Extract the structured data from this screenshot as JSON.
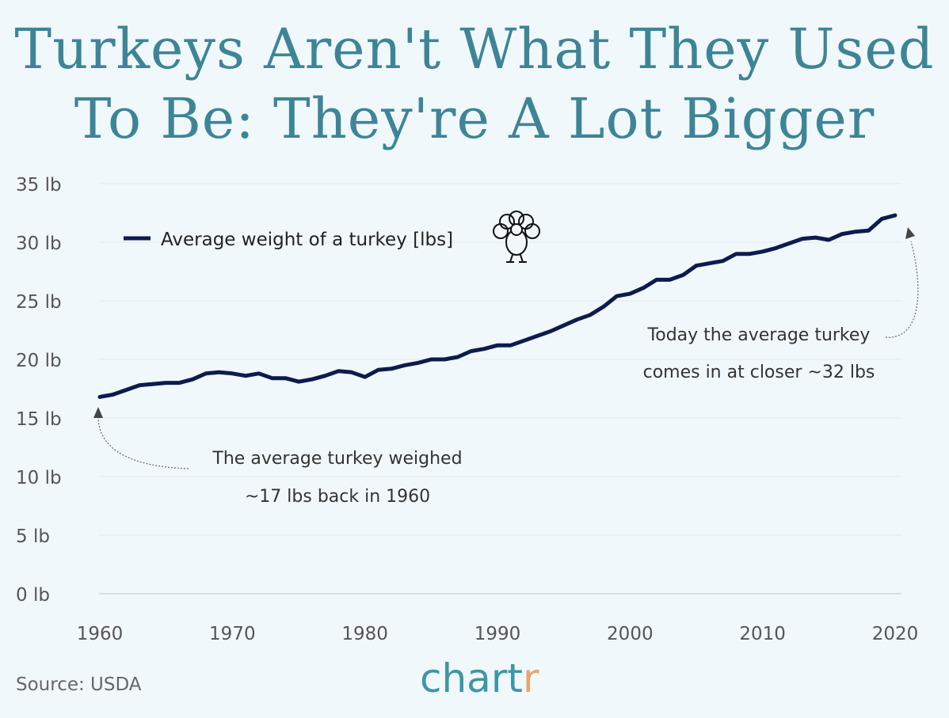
{
  "title": "Turkeys Aren't What They Used To Be: They're A Lot Bigger",
  "source": "Source: USDA",
  "logo": {
    "main": "chart",
    "accent": "r"
  },
  "colors": {
    "line": "#0e1b4d",
    "title": "#3d8596",
    "background": "#f1f8fc",
    "logo_accent": "#e8a46c"
  },
  "legend_icon": "turkey-icon",
  "chart_data": {
    "type": "line",
    "title": "Turkeys Aren't What They Used To Be: They're A Lot Bigger",
    "xlabel": "",
    "ylabel": "",
    "xlim": [
      1960,
      2020
    ],
    "ylim": [
      0,
      35
    ],
    "grid": true,
    "legend_position": "top-left",
    "x_ticks": [
      "1960",
      "1970",
      "1980",
      "1990",
      "2000",
      "2010",
      "2020"
    ],
    "y_ticks": [
      "0 lb",
      "5 lb",
      "10 lb",
      "15 lb",
      "20 lb",
      "25 lb",
      "30 lb",
      "35 lb"
    ],
    "series": [
      {
        "name": "Average weight of a turkey [lbs]",
        "x": [
          1960,
          1961,
          1962,
          1963,
          1964,
          1965,
          1966,
          1967,
          1968,
          1969,
          1970,
          1971,
          1972,
          1973,
          1974,
          1975,
          1976,
          1977,
          1978,
          1979,
          1980,
          1981,
          1982,
          1983,
          1984,
          1985,
          1986,
          1987,
          1988,
          1989,
          1990,
          1991,
          1992,
          1993,
          1994,
          1995,
          1996,
          1997,
          1998,
          1999,
          2000,
          2001,
          2002,
          2003,
          2004,
          2005,
          2006,
          2007,
          2008,
          2009,
          2010,
          2011,
          2012,
          2013,
          2014,
          2015,
          2016,
          2017,
          2018,
          2019,
          2020
        ],
        "values": [
          16.8,
          17.0,
          17.4,
          17.8,
          17.9,
          18.0,
          18.0,
          18.3,
          18.8,
          18.9,
          18.8,
          18.6,
          18.8,
          18.4,
          18.4,
          18.1,
          18.3,
          18.6,
          19.0,
          18.9,
          18.5,
          19.1,
          19.2,
          19.5,
          19.7,
          20.0,
          20.0,
          20.2,
          20.7,
          20.9,
          21.2,
          21.2,
          21.6,
          22.0,
          22.4,
          22.9,
          23.4,
          23.8,
          24.5,
          25.4,
          25.6,
          26.1,
          26.8,
          26.8,
          27.2,
          28.0,
          28.2,
          28.4,
          29.0,
          29.0,
          29.2,
          29.5,
          29.9,
          30.3,
          30.4,
          30.2,
          30.7,
          30.9,
          31.0,
          32.0,
          32.3
        ]
      }
    ],
    "annotations": [
      {
        "lines": [
          "The average turkey weighed",
          "~17 lbs back in 1960"
        ],
        "points_to": [
          1960,
          16.8
        ]
      },
      {
        "lines": [
          "Today the average turkey",
          "comes in at closer ~32 lbs"
        ],
        "points_to": [
          2020,
          32.3
        ]
      }
    ]
  }
}
